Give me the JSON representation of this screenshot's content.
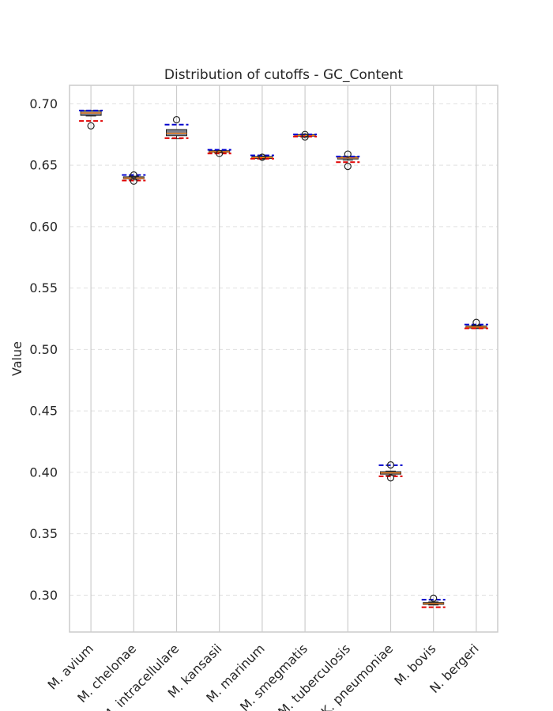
{
  "chart_data": {
    "type": "box",
    "title": "Distribution of cutoffs - GC_Content",
    "xlabel": "",
    "ylabel": "Value",
    "ylim": [
      0.27,
      0.715
    ],
    "yticks": [
      0.3,
      0.35,
      0.4,
      0.45,
      0.5,
      0.55,
      0.6,
      0.65,
      0.7
    ],
    "ytick_labels": [
      "0.30",
      "0.35",
      "0.40",
      "0.45",
      "0.50",
      "0.55",
      "0.60",
      "0.65",
      "0.70"
    ],
    "grid": true,
    "categories": [
      "M. avium",
      "M. chelonae",
      "M. intracellulare",
      "M. kansasii",
      "M. marinum",
      "M. smegmatis",
      "M. tuberculosis",
      "K. pneumoniae",
      "M. bovis",
      "N. bergeri"
    ],
    "boxes": [
      {
        "whislo": 0.69,
        "q1": 0.6905,
        "med": 0.6925,
        "q3": 0.6945,
        "whishi": 0.6945,
        "fliers": [
          0.682
        ],
        "red_line": 0.686,
        "blue_line": 0.6945
      },
      {
        "whislo": 0.638,
        "q1": 0.639,
        "med": 0.6395,
        "q3": 0.6405,
        "whishi": 0.641,
        "fliers": [
          0.642,
          0.637
        ],
        "red_line": 0.6375,
        "blue_line": 0.642
      },
      {
        "whislo": 0.6715,
        "q1": 0.674,
        "med": 0.676,
        "q3": 0.679,
        "whishi": 0.679,
        "fliers": [
          0.687
        ],
        "red_line": 0.672,
        "blue_line": 0.683
      },
      {
        "whislo": 0.66,
        "q1": 0.6605,
        "med": 0.661,
        "q3": 0.6618,
        "whishi": 0.662,
        "fliers": [
          0.6595
        ],
        "red_line": 0.6595,
        "blue_line": 0.6625
      },
      {
        "whislo": 0.655,
        "q1": 0.6555,
        "med": 0.6562,
        "q3": 0.657,
        "whishi": 0.6575,
        "fliers": [
          0.6565
        ],
        "red_line": 0.6553,
        "blue_line": 0.658
      },
      {
        "whislo": 0.6735,
        "q1": 0.6738,
        "med": 0.6742,
        "q3": 0.6748,
        "whishi": 0.675,
        "fliers": [
          0.675,
          0.673
        ],
        "red_line": 0.6733,
        "blue_line": 0.675
      },
      {
        "whislo": 0.654,
        "q1": 0.655,
        "med": 0.656,
        "q3": 0.6568,
        "whishi": 0.657,
        "fliers": [
          0.659,
          0.649
        ],
        "red_line": 0.6525,
        "blue_line": 0.657
      },
      {
        "whislo": 0.3975,
        "q1": 0.3985,
        "med": 0.3995,
        "q3": 0.4005,
        "whishi": 0.401,
        "fliers": [
          0.406,
          0.3955
        ],
        "red_line": 0.3968,
        "blue_line": 0.4058
      },
      {
        "whislo": 0.292,
        "q1": 0.2925,
        "med": 0.2932,
        "q3": 0.294,
        "whishi": 0.2945,
        "fliers": [
          0.2975
        ],
        "red_line": 0.2902,
        "blue_line": 0.2963
      },
      {
        "whislo": 0.517,
        "q1": 0.5175,
        "med": 0.5182,
        "q3": 0.519,
        "whishi": 0.5195,
        "fliers": [
          0.522
        ],
        "red_line": 0.5172,
        "blue_line": 0.5203
      }
    ],
    "colors": {
      "box_fill": "#7d8290",
      "box_edge": "#262626",
      "median": "#ff7f0e",
      "red_line": "#e00000",
      "blue_line": "#0000cc",
      "grid": "#e0e0e0",
      "frame": "#cccccc",
      "flier_edge": "#262626"
    }
  }
}
